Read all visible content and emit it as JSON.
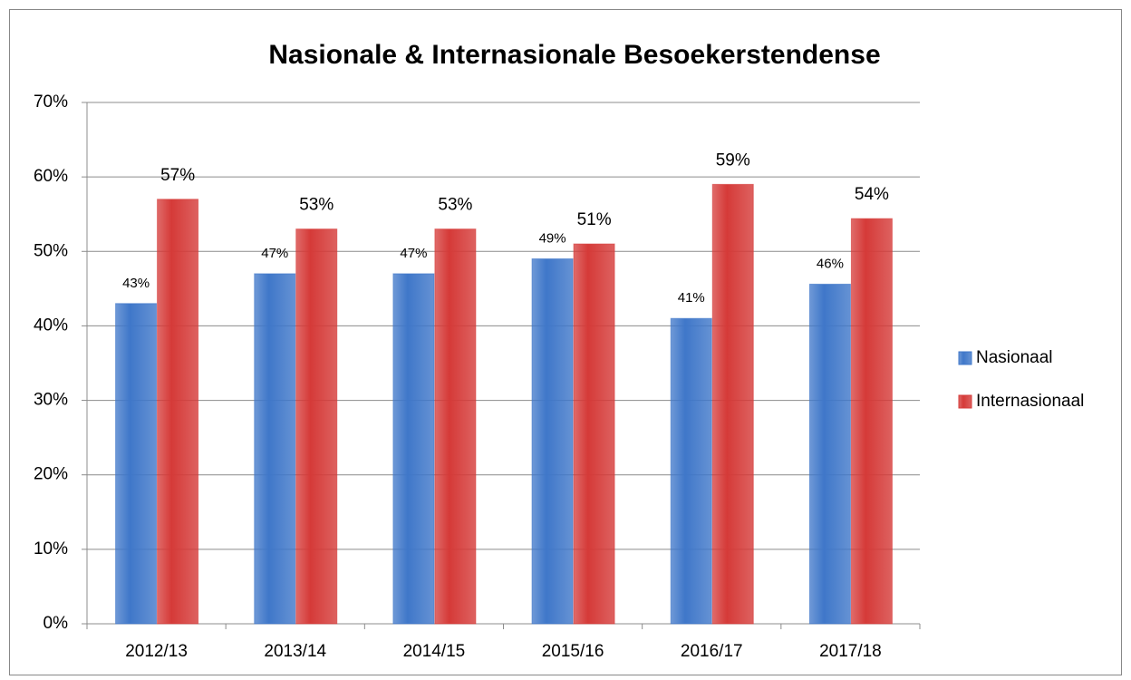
{
  "chart_data": {
    "type": "bar",
    "title": "Nasionale & Internasionale Besoekerstendense",
    "categories": [
      "2012/13",
      "2013/14",
      "2014/15",
      "2015/16",
      "2016/17",
      "2017/18"
    ],
    "series": [
      {
        "name": "Nasionaal",
        "color": "#3f77c9",
        "values": [
          43,
          47,
          47,
          49,
          41,
          45.6
        ],
        "value_labels": [
          "43%",
          "47%",
          "47%",
          "49%",
          "41%",
          "46%"
        ]
      },
      {
        "name": "Internasionaal",
        "color": "#d53a38",
        "values": [
          57,
          53,
          53,
          51,
          59,
          54.4
        ],
        "value_labels": [
          "57%",
          "53%",
          "53%",
          "51%",
          "59%",
          "54%"
        ]
      }
    ],
    "ylim": [
      0,
      70
    ],
    "yticks": [
      {
        "value": 0,
        "label": "0%"
      },
      {
        "value": 10,
        "label": "10%"
      },
      {
        "value": 20,
        "label": "20%"
      },
      {
        "value": 30,
        "label": "30%"
      },
      {
        "value": 40,
        "label": "40%"
      },
      {
        "value": 50,
        "label": "50%"
      },
      {
        "value": 60,
        "label": "60%"
      },
      {
        "value": 70,
        "label": "70%"
      }
    ],
    "grid": true,
    "legend": "right"
  }
}
